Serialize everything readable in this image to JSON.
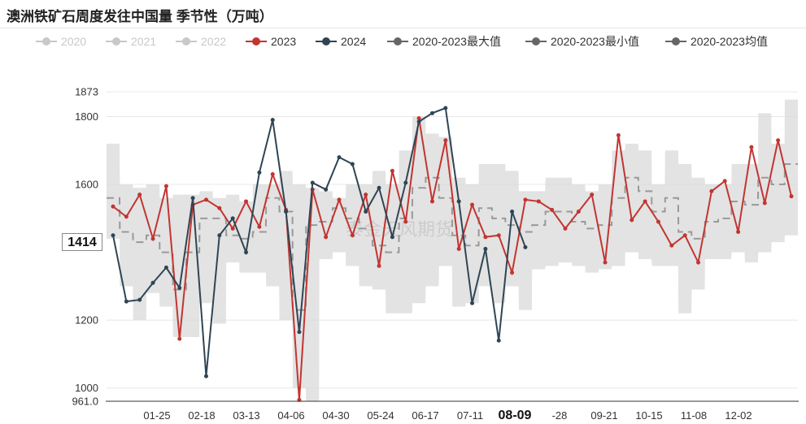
{
  "page": {
    "title": "澳洲铁矿石周度发往中国量 季节性（万吨）"
  },
  "legend": [
    {
      "name": "2020",
      "color": "#c8c8c8",
      "active": false
    },
    {
      "name": "2021",
      "color": "#c8c8c8",
      "active": false
    },
    {
      "name": "2022",
      "color": "#c8c8c8",
      "active": false
    },
    {
      "name": "2023",
      "color": "#c23531",
      "active": true
    },
    {
      "name": "2024",
      "color": "#2f4554",
      "active": true
    },
    {
      "name": "2020-2023最大值",
      "color": "#666666",
      "active": true
    },
    {
      "name": "2020-2023最小值",
      "color": "#666666",
      "active": true
    },
    {
      "name": "2020-2023均值",
      "color": "#666666",
      "active": true
    }
  ],
  "watermark": "泰金天风期货",
  "pointer": {
    "value": "1414"
  },
  "chart_data": {
    "type": "line",
    "title": "澳洲铁矿石周度发往中国量 季节性（万吨）",
    "ylim": [
      961.0,
      1873
    ],
    "yticks": [
      "961.0",
      "1000",
      "1200",
      "1600",
      "1800",
      "1873"
    ],
    "xtick_labels": [
      "01-25",
      "02-18",
      "03-13",
      "04-06",
      "04-30",
      "05-24",
      "06-17",
      "07-11",
      "08-09",
      "-28",
      "09-21",
      "10-15",
      "11-08",
      "12-02"
    ],
    "xtick_highlight": "08-09",
    "x_weeks": 52,
    "series": [
      {
        "name": "2023",
        "values": [
          1535,
          1505,
          1570,
          1440,
          1595,
          1145,
          1540,
          1555,
          1530,
          1470,
          1550,
          1475,
          1630,
          1525,
          965,
          1585,
          1445,
          1555,
          1450,
          1570,
          1360,
          1640,
          1490,
          1795,
          1550,
          1730,
          1410,
          1540,
          1445,
          1450,
          1340,
          1555,
          1550,
          1525,
          1470,
          1520,
          1570,
          1370,
          1745,
          1495,
          1550,
          1490,
          1420,
          1450,
          1370,
          1580,
          1610,
          1460,
          1710,
          1545,
          1730,
          1565
        ]
      },
      {
        "name": "2024",
        "values": [
          1450,
          1255,
          1260,
          1310,
          1355,
          1295,
          1560,
          1035,
          1450,
          1500,
          1400,
          1635,
          1790,
          1520,
          1165,
          1605,
          1585,
          1680,
          1660,
          1520,
          1590,
          1445,
          1605,
          1785,
          1810,
          1825,
          1550,
          1250,
          1410,
          1140,
          1520,
          1415
        ]
      },
      {
        "name": "2020-2023最大值",
        "values": [
          1720,
          1600,
          1590,
          1600,
          1560,
          1570,
          1570,
          1580,
          1560,
          1570,
          1550,
          1600,
          1600,
          1640,
          1600,
          1590,
          1580,
          1560,
          1600,
          1600,
          1640,
          1600,
          1700,
          1800,
          1750,
          1740,
          1620,
          1600,
          1660,
          1660,
          1640,
          1580,
          1580,
          1620,
          1620,
          1600,
          1580,
          1600,
          1700,
          1720,
          1700,
          1600,
          1700,
          1660,
          1620,
          1600,
          1600,
          1660,
          1660,
          1810,
          1720,
          1850
        ]
      },
      {
        "name": "2020-2023最小值",
        "values": [
          1440,
          1300,
          1200,
          1280,
          1240,
          1150,
          1150,
          1250,
          1190,
          1370,
          1340,
          1340,
          1300,
          1200,
          1000,
          960,
          1380,
          1400,
          1360,
          1300,
          1290,
          1220,
          1220,
          1250,
          1300,
          1360,
          1240,
          1250,
          1300,
          1250,
          1300,
          1230,
          1350,
          1360,
          1370,
          1360,
          1340,
          1350,
          1360,
          1400,
          1380,
          1360,
          1360,
          1220,
          1290,
          1380,
          1380,
          1400,
          1370,
          1400,
          1430,
          1450
        ]
      },
      {
        "name": "2020-2023均值",
        "values": [
          1560,
          1460,
          1430,
          1450,
          1400,
          1290,
          1400,
          1500,
          1500,
          1450,
          1440,
          1460,
          1560,
          1520,
          1230,
          1480,
          1490,
          1530,
          1500,
          1470,
          1420,
          1400,
          1500,
          1590,
          1620,
          1560,
          1450,
          1420,
          1530,
          1500,
          1480,
          1460,
          1480,
          1520,
          1520,
          1490,
          1470,
          1480,
          1560,
          1620,
          1580,
          1520,
          1560,
          1460,
          1440,
          1490,
          1500,
          1550,
          1540,
          1620,
          1600,
          1660
        ]
      }
    ]
  }
}
